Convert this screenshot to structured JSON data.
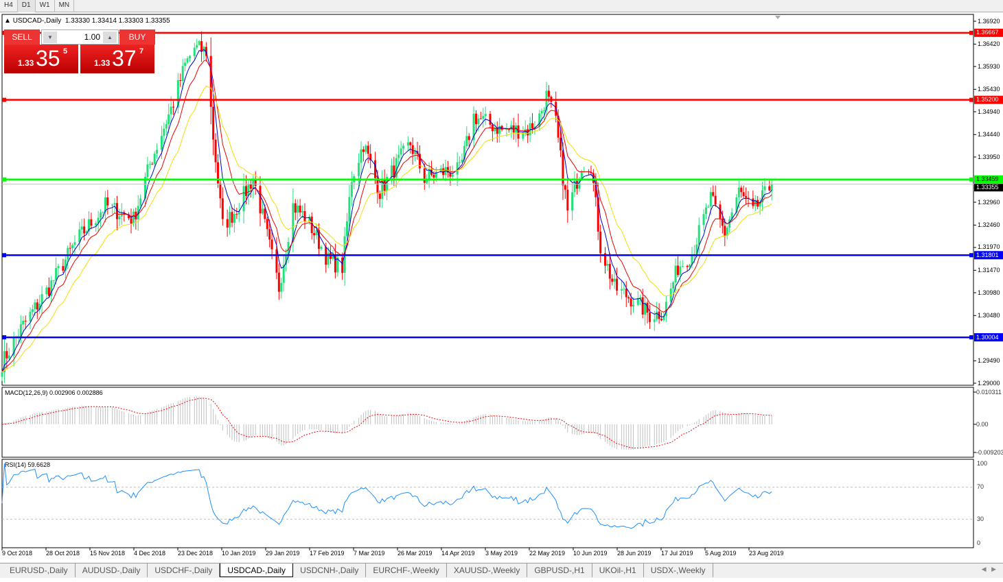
{
  "timeframes": [
    "H4",
    "D1",
    "W1",
    "MN"
  ],
  "active_timeframe": "D1",
  "chart": {
    "symbol_line": "USDCAD-,Daily",
    "ohlc": "1.33330 1.33414 1.33303 1.33355"
  },
  "trade_panel": {
    "sell_label": "SELL",
    "buy_label": "BUY",
    "lot": "1.00",
    "sell": {
      "big": "1.33",
      "main": "35",
      "pip": "5"
    },
    "buy": {
      "big": "1.33",
      "main": "37",
      "pip": "7"
    }
  },
  "price_axis": [
    "1.36920",
    "1.36420",
    "1.35930",
    "1.35430",
    "1.34940",
    "1.34440",
    "1.33950",
    "1.32960",
    "1.32460",
    "1.31970",
    "1.31470",
    "1.30980",
    "1.30480",
    "1.29490",
    "1.29000"
  ],
  "levels": [
    {
      "price": "1.36667",
      "color": "#ff0000"
    },
    {
      "price": "1.35200",
      "color": "#ff0000"
    },
    {
      "price": "1.33459",
      "color": "#00ff00"
    },
    {
      "price": "1.31801",
      "color": "#0000ff"
    },
    {
      "price": "1.30004",
      "color": "#0000ff"
    }
  ],
  "current_price": "1.33355",
  "macd": {
    "label": "MACD(12,26,9) 0.002906 0.002886",
    "axis": [
      "0.010311",
      "0.00",
      "-0.009203"
    ]
  },
  "rsi": {
    "label": "RSI(14) 59.6628",
    "axis": [
      "100",
      "70",
      "30",
      "0"
    ]
  },
  "date_axis": [
    "9 Oct 2018",
    "28 Oct 2018",
    "15 Nov 2018",
    "4 Dec 2018",
    "23 Dec 2018",
    "10 Jan 2019",
    "29 Jan 2019",
    "17 Feb 2019",
    "7 Mar 2019",
    "26 Mar 2019",
    "14 Apr 2019",
    "3 May 2019",
    "22 May 2019",
    "10 Jun 2019",
    "28 Jun 2019",
    "17 Jul 2019",
    "5 Aug 2019",
    "23 Aug 2019"
  ],
  "tabs": [
    "EURUSD-,Daily",
    "AUDUSD-,Daily",
    "USDCHF-,Daily",
    "USDCAD-,Daily",
    "USDCNH-,Daily",
    "EURCHF-,Weekly",
    "XAUUSD-,Weekly",
    "GBPUSD-,H1",
    "UKOil-,H1",
    "USDX-,Weekly"
  ],
  "active_tab": "USDCAD-,Daily",
  "colors": {
    "bull": "#22e07a",
    "bear": "#ff0000",
    "ma_fast": "#0000cc",
    "ma_mid": "#ee0000",
    "ma_slow": "#f0e000",
    "macd_hist": "#c0c0c0",
    "macd_signal": "#ff0000",
    "rsi": "#1e90ff"
  },
  "chart_data": {
    "type": "candlestick",
    "price_range": [
      1.29,
      1.3692
    ],
    "close_path": [
      [
        "2018-10-09",
        1.2944
      ],
      [
        "2018-10-17",
        1.3019
      ],
      [
        "2018-10-29",
        1.3109
      ],
      [
        "2018-11-10",
        1.3214
      ],
      [
        "2018-11-22",
        1.3289
      ],
      [
        "2018-12-04",
        1.3259
      ],
      [
        "2018-12-11",
        1.3379
      ],
      [
        "2018-12-21",
        1.3514
      ],
      [
        "2018-12-26",
        1.3596
      ],
      [
        "2018-12-30",
        1.3634
      ],
      [
        "2019-01-04",
        1.3626
      ],
      [
        "2019-01-07",
        1.3439
      ],
      [
        "2019-01-11",
        1.3244
      ],
      [
        "2019-01-16",
        1.3274
      ],
      [
        "2019-01-24",
        1.3349
      ],
      [
        "2019-01-29",
        1.3244
      ],
      [
        "2019-02-04",
        1.3109
      ],
      [
        "2019-02-10",
        1.3289
      ],
      [
        "2019-02-16",
        1.3259
      ],
      [
        "2019-02-25",
        1.3169
      ],
      [
        "2019-03-03",
        1.3154
      ],
      [
        "2019-03-07",
        1.3349
      ],
      [
        "2019-03-12",
        1.3424
      ],
      [
        "2019-03-19",
        1.3319
      ],
      [
        "2019-03-28",
        1.3394
      ],
      [
        "2019-04-01",
        1.3424
      ],
      [
        "2019-04-07",
        1.3349
      ],
      [
        "2019-04-16",
        1.3364
      ],
      [
        "2019-04-22",
        1.3364
      ],
      [
        "2019-04-28",
        1.3484
      ],
      [
        "2019-05-10",
        1.3454
      ],
      [
        "2019-05-21",
        1.3454
      ],
      [
        "2019-05-26",
        1.3484
      ],
      [
        "2019-05-29",
        1.3529
      ],
      [
        "2019-06-02",
        1.3469
      ],
      [
        "2019-06-07",
        1.3274
      ],
      [
        "2019-06-13",
        1.3379
      ],
      [
        "2019-06-17",
        1.3379
      ],
      [
        "2019-06-21",
        1.3199
      ],
      [
        "2019-06-27",
        1.3109
      ],
      [
        "2019-07-06",
        1.3079
      ],
      [
        "2019-07-12",
        1.3049
      ],
      [
        "2019-07-18",
        1.3056
      ],
      [
        "2019-07-24",
        1.3154
      ],
      [
        "2019-07-30",
        1.3184
      ],
      [
        "2019-08-07",
        1.3304
      ],
      [
        "2019-08-13",
        1.3229
      ],
      [
        "2019-08-19",
        1.3319
      ],
      [
        "2019-08-25",
        1.3274
      ],
      [
        "2019-08-29",
        1.3304
      ],
      [
        "2019-09-02",
        1.33355
      ]
    ]
  }
}
